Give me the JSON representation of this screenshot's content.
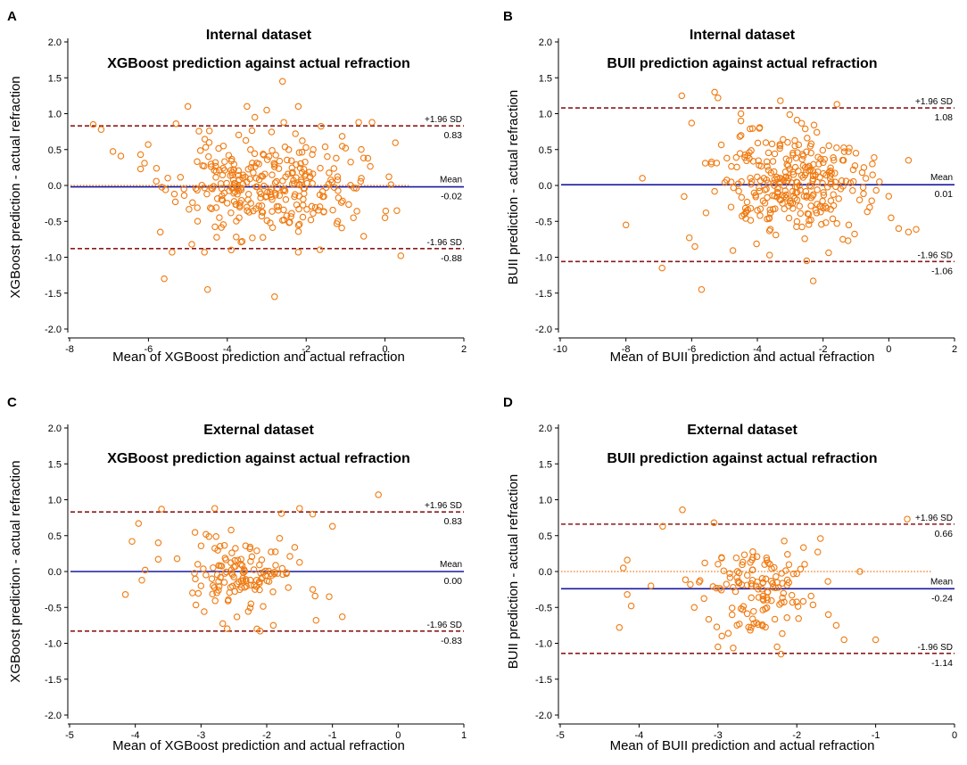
{
  "colors": {
    "point": "#f07a10",
    "mean": "#1a1aa0",
    "limit": "#8b1a1a",
    "zero": "#f07a10"
  },
  "chart_data": [
    {
      "type": "scatter",
      "letter": "A",
      "title": "Internal dataset",
      "subtitle": "XGBoost prediction against actual refraction",
      "xlabel": "Mean of XGBoost prediction and actual refraction",
      "ylabel": "XGBoost prediction - actual refraction",
      "xlim": [
        -8,
        2
      ],
      "ylim": [
        -2.0,
        2.0
      ],
      "xticks": [
        -8,
        -6,
        -4,
        -2,
        0,
        2
      ],
      "yticks": [
        "2.0",
        "1.5",
        "1.0",
        "0.5",
        "0.0",
        "-0.5",
        "-1.0",
        "-1.5",
        "-2.0"
      ],
      "mean": {
        "label": "Mean",
        "value": -0.02,
        "text": "-0.02"
      },
      "upper": {
        "label": "+1.96 SD",
        "value": 0.83,
        "text": "0.83"
      },
      "lower": {
        "label": "-1.96 SD",
        "value": -0.88,
        "text": "-0.88"
      },
      "zero_line": true,
      "points_seed": 11,
      "points_count": 300,
      "points_center": -3.0,
      "points_spread": 1.5,
      "points_sd": 0.43,
      "points_mean": -0.02,
      "points": [
        [
          -7.4,
          0.85
        ],
        [
          -7.2,
          0.78
        ],
        [
          -6.7,
          0.41
        ],
        [
          -6.2,
          0.43
        ],
        [
          -6.1,
          0.31
        ],
        [
          -6.2,
          0.23
        ],
        [
          -5.8,
          0.06
        ],
        [
          -5.7,
          -0.65
        ],
        [
          -5.6,
          -1.3
        ],
        [
          -5.4,
          -0.93
        ],
        [
          -5.3,
          0.86
        ],
        [
          -5.0,
          1.1
        ],
        [
          -4.9,
          -0.82
        ],
        [
          -4.5,
          -1.45
        ],
        [
          -2.6,
          1.45
        ],
        [
          -2.8,
          -1.55
        ],
        [
          -3.5,
          1.1
        ],
        [
          -3.0,
          1.05
        ],
        [
          -3.3,
          0.95
        ],
        [
          -2.2,
          1.1
        ],
        [
          -1.0,
          0.52
        ],
        [
          -0.8,
          -0.45
        ],
        [
          0.1,
          0.12
        ],
        [
          0.0,
          -0.45
        ],
        [
          0.3,
          -0.35
        ],
        [
          0.4,
          -0.98
        ],
        [
          -0.6,
          0.1
        ],
        [
          -1.2,
          -0.5
        ],
        [
          -2.2,
          -0.93
        ],
        [
          -4.1,
          0.55
        ],
        [
          -3.9,
          -0.9
        ],
        [
          -5.1,
          -0.05
        ],
        [
          -4.3,
          0.32
        ],
        [
          -3.7,
          -0.45
        ]
      ]
    },
    {
      "type": "scatter",
      "letter": "B",
      "title": "Internal dataset",
      "subtitle": "BUII prediction against actual refraction",
      "xlabel": "Mean of BUII prediction and actual refraction",
      "ylabel": "BUII prediction - actual refraction",
      "xlim": [
        -10,
        2
      ],
      "ylim": [
        -2.0,
        2.0
      ],
      "xticks": [
        -10,
        -8,
        -6,
        -4,
        -2,
        0,
        2
      ],
      "yticks": [
        "2.0",
        "1.5",
        "1.0",
        "0.5",
        "0.0",
        "-0.5",
        "-1.0",
        "-1.5",
        "-2.0"
      ],
      "mean": {
        "label": "Mean",
        "value": 0.01,
        "text": "0.01"
      },
      "upper": {
        "label": "+1.96 SD",
        "value": 1.08,
        "text": "1.08"
      },
      "lower": {
        "label": "-1.96 SD",
        "value": -1.06,
        "text": "-1.06"
      },
      "zero_line": false,
      "points_seed": 23,
      "points_count": 300,
      "points_center": -3.0,
      "points_spread": 1.5,
      "points_sd": 0.48,
      "points_mean": 0.01,
      "points": [
        [
          -8.0,
          -0.55
        ],
        [
          -7.5,
          0.1
        ],
        [
          -6.9,
          -1.15
        ],
        [
          -6.3,
          1.25
        ],
        [
          -6.0,
          0.87
        ],
        [
          -5.7,
          -1.45
        ],
        [
          -5.3,
          1.3
        ],
        [
          -5.2,
          1.22
        ],
        [
          -4.5,
          1.0
        ],
        [
          -4.5,
          0.9
        ],
        [
          -3.3,
          1.18
        ],
        [
          -2.3,
          -1.33
        ],
        [
          -2.5,
          -1.05
        ],
        [
          -0.5,
          0.3
        ],
        [
          0.0,
          -0.15
        ],
        [
          0.3,
          -0.6
        ],
        [
          0.6,
          -0.65
        ],
        [
          0.6,
          0.35
        ],
        [
          -1.2,
          0.52
        ],
        [
          -1.0,
          0.45
        ],
        [
          -1.4,
          -0.75
        ],
        [
          -5.4,
          0.3
        ],
        [
          -4.8,
          -0.3
        ]
      ]
    },
    {
      "type": "scatter",
      "letter": "C",
      "title": "External dataset",
      "subtitle": "XGBoost prediction against actual refraction",
      "xlabel": "Mean of XGBoost prediction and actual refraction",
      "ylabel": "XGBoost prediction - actual refraction",
      "xlim": [
        -5,
        1
      ],
      "ylim": [
        -2.0,
        2.0
      ],
      "xticks": [
        -5,
        -4,
        -3,
        -2,
        -1,
        0,
        1
      ],
      "yticks": [
        "2.0",
        "1.5",
        "1.0",
        "0.5",
        "0.0",
        "-0.5",
        "-1.0",
        "-1.5",
        "-2.0"
      ],
      "mean": {
        "label": "Mean",
        "value": 0.0,
        "text": "0.00"
      },
      "upper": {
        "label": "+1.96 SD",
        "value": 0.83,
        "text": "0.83"
      },
      "lower": {
        "label": "-1.96 SD",
        "value": -0.83,
        "text": "-0.83"
      },
      "zero_line": false,
      "points_seed": 37,
      "points_count": 130,
      "points_center": -2.35,
      "points_spread": 0.5,
      "points_sd": 0.36,
      "points_mean": 0.0,
      "points": [
        [
          -4.15,
          -0.32
        ],
        [
          -4.05,
          0.42
        ],
        [
          -3.95,
          0.67
        ],
        [
          -3.85,
          0.02
        ],
        [
          -3.9,
          -0.12
        ],
        [
          -3.6,
          0.87
        ],
        [
          -3.65,
          0.4
        ],
        [
          -3.65,
          0.17
        ],
        [
          -0.3,
          1.07
        ],
        [
          -1.0,
          0.63
        ],
        [
          -0.85,
          -0.63
        ],
        [
          -1.3,
          0.8
        ],
        [
          -1.25,
          -0.68
        ],
        [
          -1.5,
          0.88
        ],
        [
          -2.1,
          -0.83
        ],
        [
          -2.15,
          -0.8
        ],
        [
          -1.9,
          -0.75
        ],
        [
          -1.05,
          -0.35
        ],
        [
          -1.3,
          -0.25
        ],
        [
          -3.0,
          -0.2
        ],
        [
          -3.05,
          0.1
        ]
      ]
    },
    {
      "type": "scatter",
      "letter": "D",
      "title": "External dataset",
      "subtitle": "BUII prediction against actual refraction",
      "xlabel": "Mean of BUII prediction and actual refraction",
      "ylabel": "BUII prediction - actual refraction",
      "xlim": [
        -5,
        0
      ],
      "ylim": [
        -2.0,
        2.0
      ],
      "xticks": [
        -5,
        -4,
        -3,
        -2,
        -1,
        0
      ],
      "yticks": [
        "2.0",
        "1.5",
        "1.0",
        "0.5",
        "0.0",
        "-0.5",
        "-1.0",
        "-1.5",
        "-2.0"
      ],
      "mean": {
        "label": "Mean",
        "value": -0.24,
        "text": "-0.24"
      },
      "upper": {
        "label": "+1.96 SD",
        "value": 0.66,
        "text": "0.66"
      },
      "lower": {
        "label": "-1.96 SD",
        "value": -1.14,
        "text": "-1.14"
      },
      "zero_line": true,
      "points_seed": 53,
      "points_count": 130,
      "points_center": -2.5,
      "points_spread": 0.45,
      "points_sd": 0.36,
      "points_mean": -0.24,
      "points": [
        [
          -4.25,
          -0.78
        ],
        [
          -4.2,
          0.05
        ],
        [
          -4.15,
          0.16
        ],
        [
          -4.15,
          -0.32
        ],
        [
          -4.1,
          -0.48
        ],
        [
          -3.85,
          -0.2
        ],
        [
          -3.7,
          0.63
        ],
        [
          -3.45,
          0.86
        ],
        [
          -3.35,
          -0.18
        ],
        [
          -3.05,
          0.68
        ],
        [
          -0.6,
          0.73
        ],
        [
          -1.2,
          0.0
        ],
        [
          -1.0,
          -0.95
        ],
        [
          -1.4,
          -0.95
        ],
        [
          -1.7,
          0.46
        ],
        [
          -2.2,
          -1.15
        ],
        [
          -2.25,
          -1.05
        ],
        [
          -3.0,
          -1.05
        ],
        [
          -3.3,
          -0.5
        ],
        [
          -1.6,
          -0.6
        ],
        [
          -1.5,
          -0.75
        ],
        [
          -1.9,
          0.1
        ],
        [
          -2.95,
          -0.9
        ]
      ]
    }
  ]
}
